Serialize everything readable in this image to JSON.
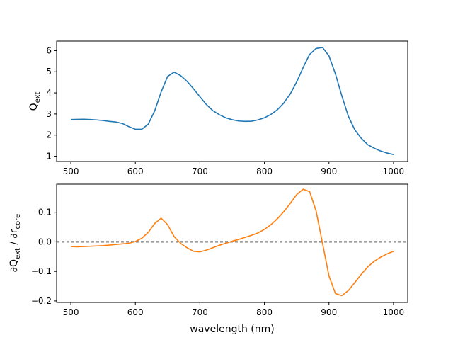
{
  "chart_data": [
    {
      "type": "line",
      "xlabel": "",
      "ylabel": "Q_ext",
      "ylabel_main": "Q",
      "ylabel_sub": "ext",
      "xlim": [
        478,
        1022
      ],
      "ylim": [
        0.75,
        6.45
      ],
      "xticks": [
        500,
        600,
        700,
        800,
        900,
        1000
      ],
      "yticks": [
        1,
        2,
        3,
        4,
        5,
        6
      ],
      "grid": false,
      "color": "#1f77b4",
      "series": [
        {
          "x": [
            500,
            520,
            530,
            540,
            550,
            560,
            570,
            580,
            590,
            600,
            610,
            620,
            630,
            640,
            650,
            660,
            670,
            680,
            690,
            700,
            710,
            720,
            730,
            740,
            750,
            760,
            770,
            780,
            790,
            800,
            810,
            820,
            830,
            840,
            850,
            860,
            870,
            880,
            890,
            900,
            910,
            920,
            930,
            940,
            950,
            960,
            970,
            980,
            990,
            1000
          ],
          "values": [
            2.74,
            2.75,
            2.74,
            2.72,
            2.69,
            2.65,
            2.62,
            2.55,
            2.4,
            2.28,
            2.28,
            2.52,
            3.15,
            4.05,
            4.78,
            4.98,
            4.82,
            4.55,
            4.2,
            3.82,
            3.45,
            3.16,
            2.97,
            2.82,
            2.73,
            2.67,
            2.65,
            2.66,
            2.72,
            2.82,
            2.98,
            3.2,
            3.52,
            3.95,
            4.52,
            5.2,
            5.82,
            6.1,
            6.15,
            5.75,
            4.9,
            3.85,
            2.9,
            2.25,
            1.85,
            1.55,
            1.38,
            1.25,
            1.15,
            1.08
          ]
        }
      ]
    },
    {
      "type": "line",
      "xlabel": "wavelength (nm)",
      "ylabel": "∂Q_ext / ∂r_core",
      "ylabel_pre": "∂Q",
      "ylabel_sub1": "ext",
      "ylabel_mid": " / ∂r",
      "ylabel_sub2": "core",
      "xlim": [
        478,
        1022
      ],
      "ylim": [
        -0.205,
        0.195
      ],
      "xticks": [
        500,
        600,
        700,
        800,
        900,
        1000
      ],
      "yticks": [
        -0.2,
        -0.1,
        0.0,
        0.1
      ],
      "ytick_labels": [
        "−0.2",
        "−0.1",
        "0.0",
        "0.1"
      ],
      "grid": false,
      "color": "#ff7f0e",
      "reference_line": {
        "y": 0,
        "style": "dashed",
        "color": "#000000"
      },
      "series": [
        {
          "x": [
            500,
            510,
            520,
            530,
            540,
            550,
            560,
            570,
            580,
            590,
            600,
            610,
            620,
            630,
            640,
            650,
            660,
            670,
            680,
            690,
            700,
            710,
            720,
            730,
            740,
            750,
            760,
            770,
            780,
            790,
            800,
            810,
            820,
            830,
            840,
            850,
            860,
            870,
            880,
            890,
            900,
            910,
            920,
            930,
            940,
            950,
            960,
            970,
            980,
            990,
            1000
          ],
          "values": [
            -0.016,
            -0.017,
            -0.016,
            -0.015,
            -0.014,
            -0.013,
            -0.011,
            -0.009,
            -0.007,
            -0.005,
            0.001,
            0.012,
            0.032,
            0.062,
            0.08,
            0.058,
            0.018,
            -0.005,
            -0.02,
            -0.032,
            -0.034,
            -0.028,
            -0.02,
            -0.012,
            -0.005,
            0.002,
            0.008,
            0.015,
            0.022,
            0.03,
            0.042,
            0.058,
            0.078,
            0.102,
            0.13,
            0.16,
            0.178,
            0.17,
            0.105,
            -0.005,
            -0.115,
            -0.175,
            -0.182,
            -0.165,
            -0.138,
            -0.11,
            -0.085,
            -0.066,
            -0.052,
            -0.041,
            -0.032
          ]
        }
      ]
    }
  ]
}
